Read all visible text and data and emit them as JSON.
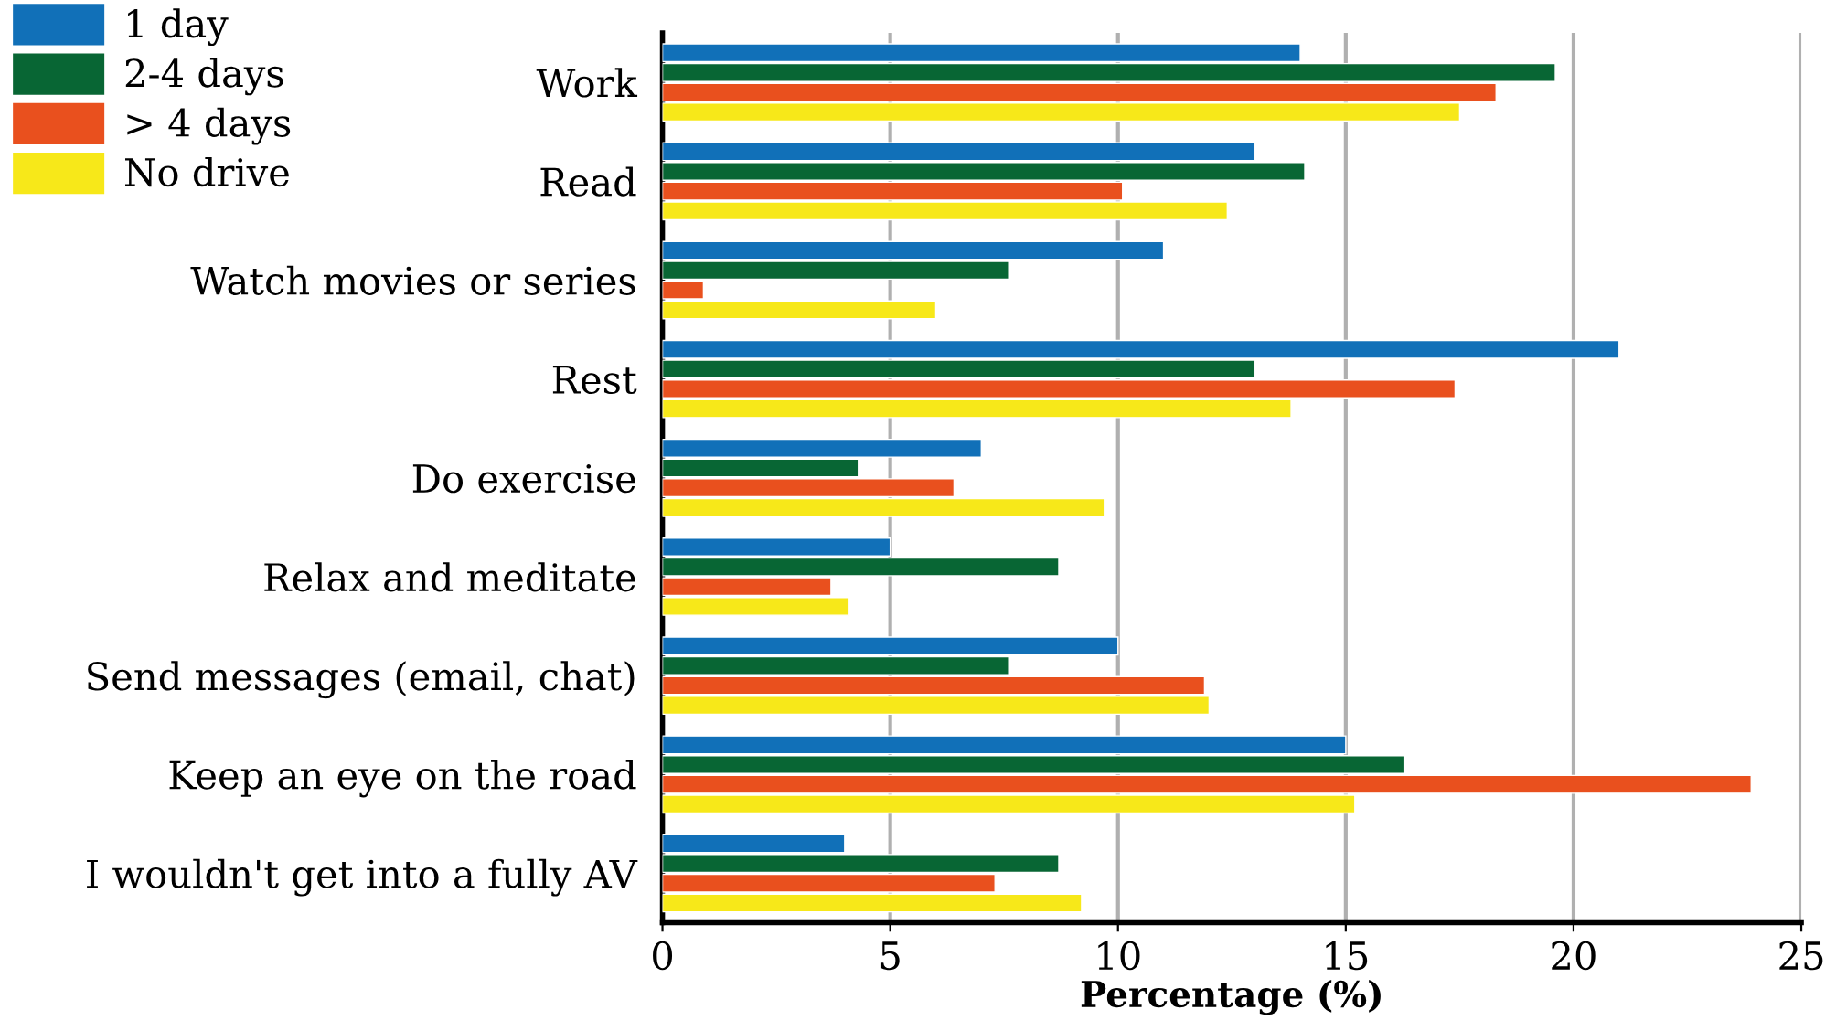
{
  "chart_data": {
    "type": "bar",
    "orientation": "horizontal",
    "xlabel": "Percentage (%)",
    "categories": [
      "Work",
      "Read",
      "Watch movies or series",
      "Rest",
      "Do exercise",
      "Relax and meditate",
      "Send messages (email, chat)",
      "Keep an eye on the road",
      "I wouldn't get into a fully AV"
    ],
    "series": [
      {
        "name": "1 day",
        "color": "#1170b8",
        "values": [
          14,
          13,
          11,
          21,
          7,
          5,
          10,
          15,
          4
        ]
      },
      {
        "name": "2-4 days",
        "color": "#086634",
        "values": [
          19.6,
          14.1,
          7.6,
          13,
          4.3,
          8.7,
          7.6,
          16.3,
          8.7
        ]
      },
      {
        "name": "> 4 days",
        "color": "#e9501e",
        "values": [
          18.3,
          10.1,
          0.9,
          17.4,
          6.4,
          3.7,
          11.9,
          23.9,
          7.3
        ]
      },
      {
        "name": "No drive",
        "color": "#f7e819",
        "values": [
          17.5,
          12.4,
          6,
          13.8,
          9.7,
          4.1,
          12,
          15.2,
          9.2
        ]
      }
    ],
    "xlim": [
      0,
      25
    ],
    "xticks": [
      0,
      5,
      10,
      15,
      20,
      25
    ],
    "grid": "x",
    "legend": "top left"
  }
}
